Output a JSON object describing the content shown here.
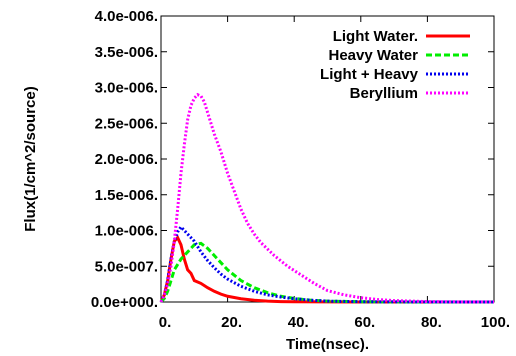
{
  "chart_data": {
    "type": "line",
    "xlabel": "Time(nsec).",
    "ylabel": "Flux(1/cm^2/source)",
    "xlim": [
      0,
      100
    ],
    "ylim": [
      0,
      4e-06
    ],
    "x_ticks": [
      "0.",
      "20.",
      "40.",
      "60.",
      "80.",
      "100."
    ],
    "x_tick_values": [
      0,
      20,
      40,
      60,
      80,
      100
    ],
    "y_ticks": [
      "0.0e+000.",
      "5.0e-007.",
      "1.0e-006.",
      "1.5e-006.",
      "2.0e-006.",
      "2.5e-006.",
      "3.0e-006.",
      "3.5e-006.",
      "4.0e-006."
    ],
    "y_tick_values": [
      0,
      5e-07,
      1e-06,
      1.5e-06,
      2e-06,
      2.5e-06,
      3e-06,
      3.5e-06,
      4e-06
    ],
    "grid": false,
    "legend_position": "top-right",
    "series": [
      {
        "name": "Light Water.",
        "color": "#ff0000",
        "dash": "solid",
        "points": [
          [
            0,
            0
          ],
          [
            1,
            1e-07
          ],
          [
            2,
            3e-07
          ],
          [
            3,
            6e-07
          ],
          [
            4,
            8.5e-07
          ],
          [
            5,
            9e-07
          ],
          [
            6,
            8e-07
          ],
          [
            7,
            6e-07
          ],
          [
            8,
            4.5e-07
          ],
          [
            9,
            4e-07
          ],
          [
            10,
            3e-07
          ],
          [
            12,
            2.6e-07
          ],
          [
            14,
            2e-07
          ],
          [
            16,
            1.5e-07
          ],
          [
            18,
            1.1e-07
          ],
          [
            20,
            8e-08
          ],
          [
            24,
            4.5e-08
          ],
          [
            28,
            2.5e-08
          ],
          [
            32,
            1.2e-08
          ],
          [
            36,
            6e-09
          ],
          [
            40,
            3e-09
          ],
          [
            50,
            1e-09
          ],
          [
            60,
            0
          ],
          [
            100,
            0
          ]
        ]
      },
      {
        "name": "Heavy Water",
        "color": "#00ee00",
        "dash": "dash",
        "points": [
          [
            0,
            0
          ],
          [
            1,
            5e-08
          ],
          [
            2,
            1.5e-07
          ],
          [
            3,
            3e-07
          ],
          [
            4,
            4.5e-07
          ],
          [
            6,
            6e-07
          ],
          [
            8,
            7e-07
          ],
          [
            10,
            8e-07
          ],
          [
            12,
            8.2e-07
          ],
          [
            14,
            7.5e-07
          ],
          [
            16,
            6.5e-07
          ],
          [
            18,
            5.5e-07
          ],
          [
            20,
            4.5e-07
          ],
          [
            24,
            3e-07
          ],
          [
            28,
            2e-07
          ],
          [
            32,
            1.3e-07
          ],
          [
            36,
            8e-08
          ],
          [
            40,
            5e-08
          ],
          [
            45,
            2.5e-08
          ],
          [
            50,
            1.2e-08
          ],
          [
            60,
            4e-09
          ],
          [
            70,
            1e-09
          ],
          [
            100,
            0
          ]
        ]
      },
      {
        "name": "Light + Heavy",
        "color": "#0000ee",
        "dash": "dot",
        "points": [
          [
            0,
            0
          ],
          [
            1,
            1e-07
          ],
          [
            2,
            3e-07
          ],
          [
            3,
            6e-07
          ],
          [
            4,
            8.5e-07
          ],
          [
            5,
            9.8e-07
          ],
          [
            6,
            1.05e-06
          ],
          [
            7,
            1e-06
          ],
          [
            8,
            9.5e-07
          ],
          [
            10,
            8.5e-07
          ],
          [
            12,
            7e-07
          ],
          [
            14,
            5.8e-07
          ],
          [
            16,
            4.8e-07
          ],
          [
            18,
            3.9e-07
          ],
          [
            20,
            3.2e-07
          ],
          [
            24,
            2.2e-07
          ],
          [
            28,
            1.5e-07
          ],
          [
            32,
            1e-07
          ],
          [
            36,
            7e-08
          ],
          [
            40,
            4.5e-08
          ],
          [
            45,
            2.5e-08
          ],
          [
            50,
            1.2e-08
          ],
          [
            60,
            4e-09
          ],
          [
            70,
            1e-09
          ],
          [
            100,
            0
          ]
        ]
      },
      {
        "name": "Beryllium",
        "color": "#ff00ff",
        "dash": "dot",
        "points": [
          [
            0,
            0
          ],
          [
            1,
            1e-07
          ],
          [
            2,
            2.5e-07
          ],
          [
            3,
            5e-07
          ],
          [
            4,
            8.5e-07
          ],
          [
            5,
            1.3e-06
          ],
          [
            6,
            1.8e-06
          ],
          [
            7,
            2.2e-06
          ],
          [
            8,
            2.55e-06
          ],
          [
            9,
            2.75e-06
          ],
          [
            10,
            2.85e-06
          ],
          [
            11,
            2.9e-06
          ],
          [
            12,
            2.88e-06
          ],
          [
            13,
            2.8e-06
          ],
          [
            14,
            2.65e-06
          ],
          [
            15,
            2.5e-06
          ],
          [
            16,
            2.35e-06
          ],
          [
            18,
            2.1e-06
          ],
          [
            20,
            1.8e-06
          ],
          [
            22,
            1.55e-06
          ],
          [
            24,
            1.3e-06
          ],
          [
            26,
            1.1e-06
          ],
          [
            28,
            9.5e-07
          ],
          [
            30,
            8.3e-07
          ],
          [
            34,
            6.5e-07
          ],
          [
            38,
            5e-07
          ],
          [
            42,
            3.8e-07
          ],
          [
            46,
            2.6e-07
          ],
          [
            50,
            1.6e-07
          ],
          [
            55,
            1e-07
          ],
          [
            60,
            6e-08
          ],
          [
            65,
            3.5e-08
          ],
          [
            70,
            2e-08
          ],
          [
            80,
            6e-09
          ],
          [
            90,
            2e-09
          ],
          [
            100,
            1e-09
          ]
        ]
      }
    ]
  }
}
